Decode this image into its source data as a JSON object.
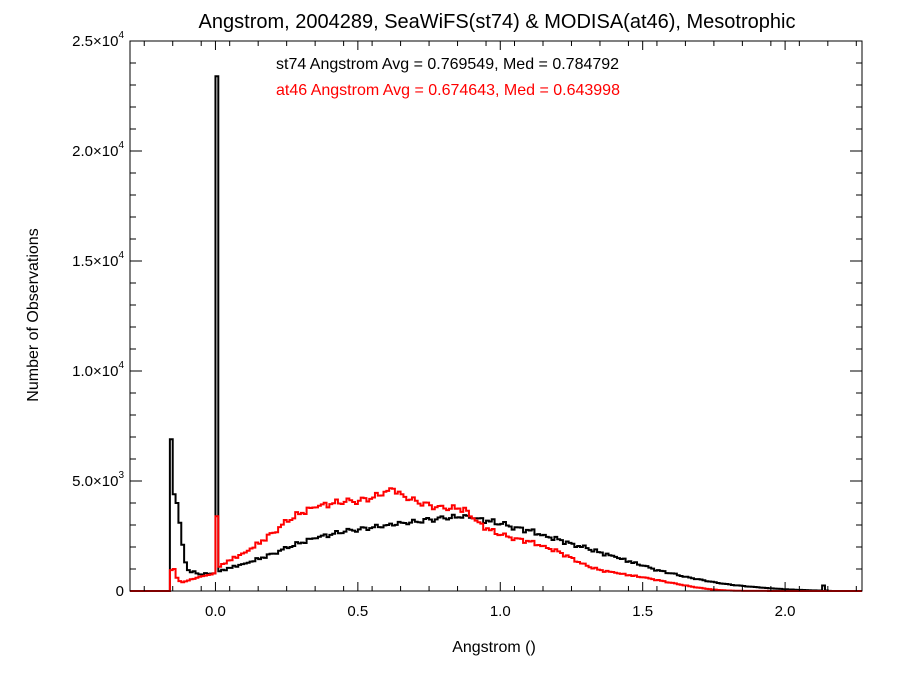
{
  "chart_data": {
    "type": "line",
    "title": "Angstrom, 2004289, SeaWiFS(st74) & MODISA(at46), Mesotrophic",
    "xlabel": "Angstrom ()",
    "ylabel": "Number of Observations",
    "xlim": [
      -0.3,
      2.27
    ],
    "ylim": [
      0,
      25000
    ],
    "x_ticks": [
      {
        "value": 0.0,
        "label": "0.0"
      },
      {
        "value": 0.5,
        "label": "0.5"
      },
      {
        "value": 1.0,
        "label": "1.0"
      },
      {
        "value": 1.5,
        "label": "1.5"
      },
      {
        "value": 2.0,
        "label": "2.0"
      }
    ],
    "y_ticks": [
      {
        "value": 0,
        "mantissa": "0",
        "exponent": ""
      },
      {
        "value": 5000,
        "mantissa": "5.0×10",
        "exponent": "3"
      },
      {
        "value": 10000,
        "mantissa": "1.0×10",
        "exponent": "4"
      },
      {
        "value": 15000,
        "mantissa": "1.5×10",
        "exponent": "4"
      },
      {
        "value": 20000,
        "mantissa": "2.0×10",
        "exponent": "4"
      },
      {
        "value": 25000,
        "mantissa": "2.5×10",
        "exponent": "4"
      }
    ],
    "grid": false,
    "legend": "none",
    "bin_width": 0.01,
    "series": [
      {
        "color": "#000000",
        "stats_text": "st74 Angstrom Avg = 0.769549, Med = 0.784792",
        "points": [
          [
            -0.3,
            0
          ],
          [
            -0.17,
            0
          ],
          [
            -0.16,
            6900
          ],
          [
            -0.15,
            4400
          ],
          [
            -0.14,
            4000
          ],
          [
            -0.13,
            3100
          ],
          [
            -0.12,
            2100
          ],
          [
            -0.11,
            1300
          ],
          [
            -0.1,
            950
          ],
          [
            -0.09,
            850
          ],
          [
            -0.08,
            900
          ],
          [
            -0.07,
            800
          ],
          [
            -0.05,
            750
          ],
          [
            -0.03,
            780
          ],
          [
            -0.01,
            800
          ],
          [
            0.0,
            23400
          ],
          [
            0.01,
            900
          ],
          [
            0.05,
            1050
          ],
          [
            0.1,
            1250
          ],
          [
            0.15,
            1450
          ],
          [
            0.2,
            1700
          ],
          [
            0.25,
            1950
          ],
          [
            0.3,
            2200
          ],
          [
            0.35,
            2400
          ],
          [
            0.4,
            2550
          ],
          [
            0.45,
            2700
          ],
          [
            0.5,
            2800
          ],
          [
            0.55,
            2900
          ],
          [
            0.6,
            3000
          ],
          [
            0.65,
            3100
          ],
          [
            0.7,
            3150
          ],
          [
            0.75,
            3250
          ],
          [
            0.8,
            3300
          ],
          [
            0.85,
            3350
          ],
          [
            0.87,
            3450
          ],
          [
            0.9,
            3300
          ],
          [
            0.95,
            3200
          ],
          [
            1.0,
            3050
          ],
          [
            1.05,
            2900
          ],
          [
            1.1,
            2750
          ],
          [
            1.15,
            2550
          ],
          [
            1.2,
            2350
          ],
          [
            1.25,
            2150
          ],
          [
            1.3,
            1950
          ],
          [
            1.35,
            1750
          ],
          [
            1.4,
            1550
          ],
          [
            1.45,
            1350
          ],
          [
            1.5,
            1150
          ],
          [
            1.55,
            950
          ],
          [
            1.6,
            800
          ],
          [
            1.65,
            650
          ],
          [
            1.7,
            520
          ],
          [
            1.75,
            400
          ],
          [
            1.8,
            300
          ],
          [
            1.85,
            230
          ],
          [
            1.9,
            170
          ],
          [
            1.95,
            120
          ],
          [
            2.0,
            80
          ],
          [
            2.05,
            50
          ],
          [
            2.1,
            30
          ],
          [
            2.12,
            20
          ],
          [
            2.13,
            250
          ],
          [
            2.14,
            20
          ],
          [
            2.16,
            0
          ],
          [
            2.27,
            0
          ]
        ]
      },
      {
        "color": "#ff0000",
        "stats_text": "at46 Angstrom Avg = 0.674643, Med = 0.643998",
        "points": [
          [
            -0.3,
            0
          ],
          [
            -0.17,
            0
          ],
          [
            -0.16,
            950
          ],
          [
            -0.15,
            1000
          ],
          [
            -0.14,
            600
          ],
          [
            -0.13,
            450
          ],
          [
            -0.12,
            400
          ],
          [
            -0.1,
            480
          ],
          [
            -0.08,
            550
          ],
          [
            -0.06,
            650
          ],
          [
            -0.04,
            700
          ],
          [
            -0.02,
            750
          ],
          [
            -0.01,
            800
          ],
          [
            0.0,
            3400
          ],
          [
            0.01,
            1100
          ],
          [
            0.03,
            1250
          ],
          [
            0.05,
            1400
          ],
          [
            0.1,
            1750
          ],
          [
            0.15,
            2150
          ],
          [
            0.2,
            2650
          ],
          [
            0.25,
            3150
          ],
          [
            0.3,
            3550
          ],
          [
            0.35,
            3800
          ],
          [
            0.4,
            3950
          ],
          [
            0.45,
            4050
          ],
          [
            0.5,
            4100
          ],
          [
            0.55,
            4250
          ],
          [
            0.6,
            4550
          ],
          [
            0.62,
            4650
          ],
          [
            0.65,
            4400
          ],
          [
            0.7,
            4100
          ],
          [
            0.75,
            3900
          ],
          [
            0.8,
            3750
          ],
          [
            0.85,
            3750
          ],
          [
            0.88,
            3650
          ],
          [
            0.9,
            3300
          ],
          [
            0.95,
            2850
          ],
          [
            1.0,
            2550
          ],
          [
            1.05,
            2400
          ],
          [
            1.1,
            2250
          ],
          [
            1.15,
            2050
          ],
          [
            1.2,
            1800
          ],
          [
            1.25,
            1500
          ],
          [
            1.3,
            1150
          ],
          [
            1.35,
            950
          ],
          [
            1.4,
            830
          ],
          [
            1.45,
            720
          ],
          [
            1.5,
            620
          ],
          [
            1.55,
            500
          ],
          [
            1.6,
            370
          ],
          [
            1.65,
            250
          ],
          [
            1.7,
            140
          ],
          [
            1.75,
            60
          ],
          [
            1.8,
            20
          ],
          [
            1.85,
            8
          ],
          [
            1.95,
            2
          ],
          [
            2.27,
            0
          ]
        ]
      }
    ]
  }
}
